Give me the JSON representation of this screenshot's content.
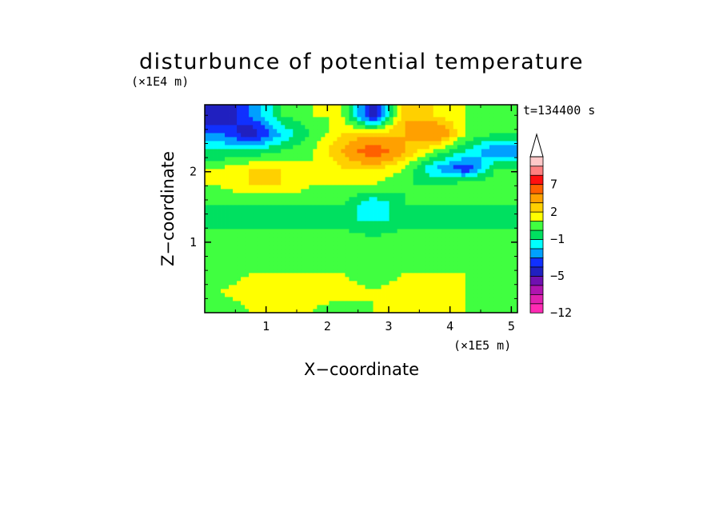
{
  "chart_data": {
    "type": "heatmap",
    "title": "disturbunce of potential temperature",
    "xlabel": "X−coordinate",
    "ylabel": "Z−coordinate",
    "x_scale_label": "(×1E5 m)",
    "y_scale_label": "(×1E4 m)",
    "time_label": "t=134400 s",
    "xlim": [
      0,
      5.1
    ],
    "ylim": [
      0,
      2.95
    ],
    "x_ticks": [
      "1",
      "2",
      "3",
      "4",
      "5"
    ],
    "y_ticks": [
      "1",
      "2"
    ],
    "colorbar": {
      "tick_labels": [
        "7",
        "2",
        "−1",
        "−5",
        "−12"
      ],
      "levels": [
        -12,
        -10,
        -8,
        -6,
        -5,
        -4,
        -3,
        -2,
        -1,
        0,
        1,
        2,
        3,
        5,
        7,
        9,
        11
      ],
      "colors": [
        "#ff2ab4",
        "#e020b0",
        "#b014b0",
        "#7010b0",
        "#2020c0",
        "#1030ff",
        "#00a0ff",
        "#00ffff",
        "#00e060",
        "#40ff40",
        "#ffff00",
        "#ffd000",
        "#ffa000",
        "#ff6000",
        "#ff1010",
        "#ff8080",
        "#ffc8c8"
      ],
      "extend": "max"
    },
    "grid": false,
    "description_levels": {
      "rows_z": [
        0.05,
        0.3,
        0.55,
        0.85,
        1.05,
        1.3,
        1.55,
        1.8,
        2.05,
        2.3,
        2.55,
        2.8
      ],
      "cols_x": [
        0.25,
        0.75,
        1.25,
        1.75,
        2.25,
        2.75,
        3.25,
        3.75,
        4.25,
        4.75
      ],
      "values": [
        [
          0,
          1,
          1,
          1,
          0,
          1,
          1,
          1,
          1,
          0
        ],
        [
          1,
          2,
          2,
          2,
          2,
          1,
          2,
          2,
          1,
          1
        ],
        [
          0,
          1,
          1,
          1,
          1,
          0,
          1,
          1,
          1,
          0
        ],
        [
          0,
          0,
          0,
          0,
          0,
          0,
          0,
          0,
          0,
          0
        ],
        [
          1,
          1,
          1,
          1,
          1,
          0,
          1,
          1,
          1,
          1
        ],
        [
          -1,
          -1,
          -1,
          -1,
          -1,
          -1,
          -1,
          -1,
          -1,
          -1
        ],
        [
          0,
          0,
          0,
          0,
          0,
          -2,
          0,
          0,
          0,
          0
        ],
        [
          1,
          2,
          2,
          1,
          1,
          1,
          0,
          0,
          1,
          1
        ],
        [
          1,
          2,
          2,
          1,
          2,
          2,
          1,
          -2,
          -4,
          0
        ],
        [
          -1,
          -1,
          0,
          1,
          3,
          7,
          3,
          1,
          -1,
          -3
        ],
        [
          -3,
          -5,
          -2,
          0,
          2,
          2,
          3,
          5,
          1,
          0
        ],
        [
          -5,
          -3,
          0,
          1,
          1,
          -5,
          3,
          2,
          1,
          0
        ]
      ]
    }
  }
}
